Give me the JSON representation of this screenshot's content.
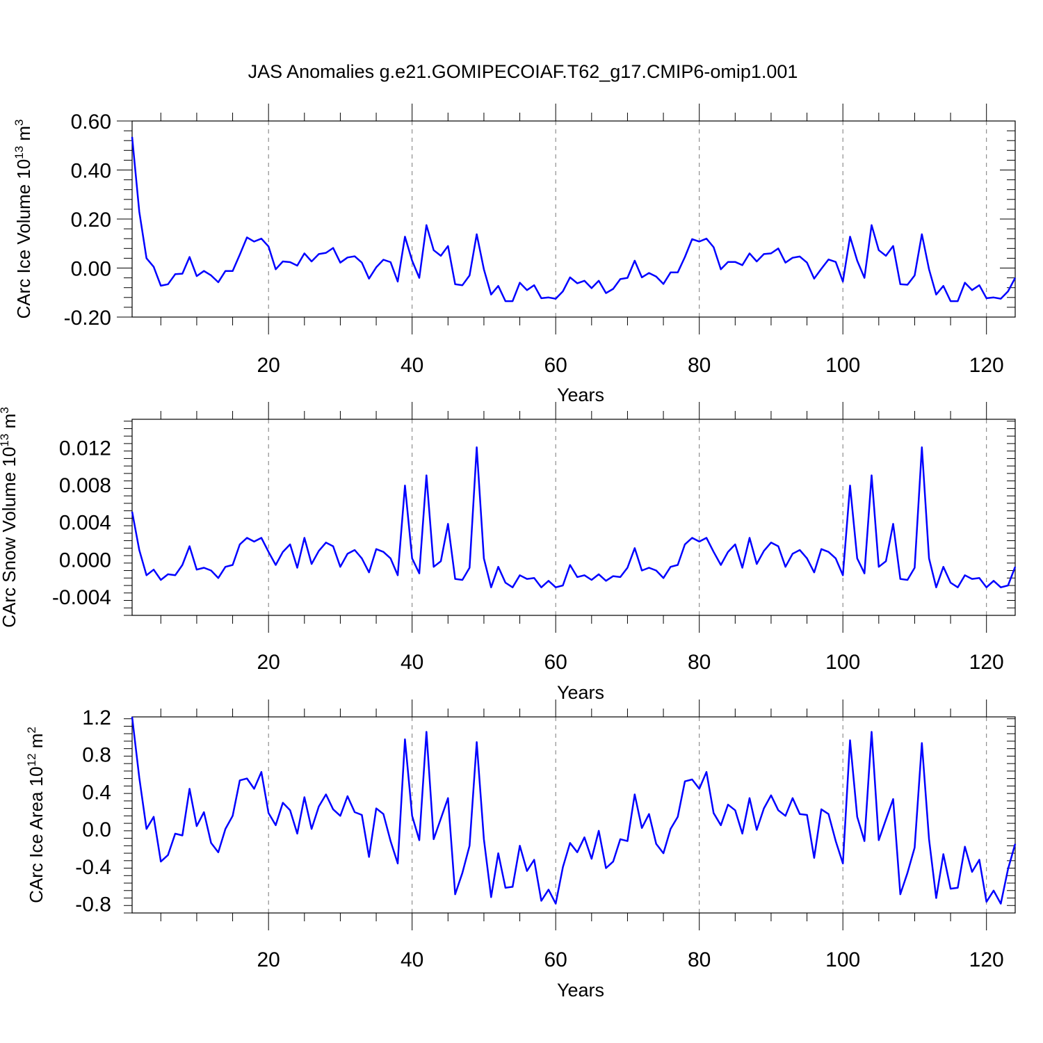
{
  "title": "JAS Anomalies g.e21.GOMIPECOIAF.T62_g17.CMIP6-omip1.001",
  "colors": {
    "series": "#0000ff",
    "grid": "#777777"
  },
  "chart_data": [
    {
      "type": "line",
      "id": "ice-volume",
      "ylabel_main": "CArc Ice Volume 10",
      "ylabel_sup": "13",
      "ylabel_unit": " m",
      "ylabel_unit_sup": "3",
      "xlabel": "Years",
      "xlim": [
        1,
        124
      ],
      "ylim": [
        -0.2,
        0.6
      ],
      "xticks": [
        20,
        40,
        60,
        80,
        100,
        120
      ],
      "xtick_labels": [
        "20",
        "40",
        "60",
        "80",
        "100",
        "120"
      ],
      "yticks": [
        -0.2,
        0.0,
        0.2,
        0.4,
        0.6
      ],
      "ytick_labels": [
        "-0.20",
        "0.00",
        "0.20",
        "0.40",
        "0.60"
      ],
      "grid": "x-dashed",
      "series": [
        {
          "name": "Ice Volume",
          "x_start": 1,
          "values": [
            0.535,
            0.23,
            0.04,
            0.005,
            -0.072,
            -0.066,
            -0.025,
            -0.023,
            0.045,
            -0.033,
            -0.012,
            -0.03,
            -0.058,
            -0.012,
            -0.012,
            0.055,
            0.125,
            0.108,
            0.12,
            0.088,
            -0.005,
            0.027,
            0.024,
            0.01,
            0.06,
            0.027,
            0.057,
            0.062,
            0.082,
            0.022,
            0.043,
            0.048,
            0.022,
            -0.043,
            0.003,
            0.034,
            0.024,
            -0.055,
            0.128,
            0.03,
            -0.04,
            0.175,
            0.073,
            0.05,
            0.09,
            -0.066,
            -0.07,
            -0.03,
            0.138,
            -0.005,
            -0.108,
            -0.073,
            -0.135,
            -0.135,
            -0.06,
            -0.09,
            -0.07,
            -0.123,
            -0.12,
            -0.125,
            -0.095,
            -0.038,
            -0.062,
            -0.052,
            -0.082,
            -0.052,
            -0.102,
            -0.085,
            -0.045,
            -0.04,
            0.03,
            -0.038,
            -0.02,
            -0.035,
            -0.065,
            -0.018,
            -0.018,
            0.045,
            0.118,
            0.108,
            0.12,
            0.085,
            -0.005,
            0.025,
            0.025,
            0.012,
            0.06,
            0.027,
            0.057,
            0.06,
            0.08,
            0.022,
            0.042,
            0.047,
            0.022,
            -0.043,
            -0.003,
            0.035,
            0.025,
            -0.055,
            0.128,
            0.03,
            -0.04,
            0.175,
            0.073,
            0.05,
            0.09,
            -0.066,
            -0.068,
            -0.03,
            0.138,
            -0.005,
            -0.108,
            -0.073,
            -0.135,
            -0.135,
            -0.06,
            -0.09,
            -0.07,
            -0.123,
            -0.12,
            -0.125,
            -0.095,
            -0.04
          ]
        }
      ]
    },
    {
      "type": "line",
      "id": "snow-volume",
      "ylabel_main": "CArc Snow Volume 10",
      "ylabel_sup": "13",
      "ylabel_unit": " m",
      "ylabel_unit_sup": "3",
      "xlabel": "Years",
      "xlim": [
        1,
        124
      ],
      "ylim": [
        -0.006,
        0.015
      ],
      "xticks": [
        20,
        40,
        60,
        80,
        100,
        120
      ],
      "xtick_labels": [
        "20",
        "40",
        "60",
        "80",
        "100",
        "120"
      ],
      "yticks": [
        -0.004,
        0.0,
        0.004,
        0.008,
        0.012
      ],
      "ytick_labels": [
        "-0.004",
        "0.000",
        "0.004",
        "0.008",
        "0.012"
      ],
      "grid": "x-dashed",
      "series": [
        {
          "name": "Snow Volume",
          "x_start": 1,
          "values": [
            0.0051,
            0.001,
            -0.0017,
            -0.0011,
            -0.0022,
            -0.0016,
            -0.0017,
            -0.0006,
            0.0014,
            -0.0011,
            -0.0009,
            -0.0012,
            -0.002,
            -0.0008,
            -0.0006,
            0.0016,
            0.0023,
            0.0019,
            0.0023,
            0.0008,
            -0.0006,
            0.0008,
            0.0016,
            -0.0009,
            0.0023,
            -0.0005,
            0.0009,
            0.0018,
            0.0014,
            -0.0008,
            0.0006,
            0.001,
            0.0001,
            -0.0014,
            0.0011,
            0.0008,
            0.0001,
            -0.0017,
            0.0079,
            0.0001,
            -0.0015,
            0.009,
            -0.0008,
            -0.0002,
            0.0038,
            -0.0021,
            -0.0022,
            -0.0009,
            0.012,
            0.0001,
            -0.003,
            -0.0008,
            -0.0025,
            -0.003,
            -0.0017,
            -0.0021,
            -0.002,
            -0.003,
            -0.0023,
            -0.003,
            -0.0028,
            -0.0006,
            -0.0019,
            -0.0017,
            -0.0022,
            -0.0016,
            -0.0023,
            -0.0018,
            -0.0019,
            -0.0009,
            0.0012,
            -0.0012,
            -0.0009,
            -0.0012,
            -0.002,
            -0.0008,
            -0.0006,
            0.0016,
            0.0023,
            0.0019,
            0.0023,
            0.0008,
            -0.0006,
            0.0008,
            0.0016,
            -0.0009,
            0.0023,
            -0.0005,
            0.0009,
            0.0018,
            0.0014,
            -0.0008,
            0.0006,
            0.001,
            0.0001,
            -0.0014,
            0.0011,
            0.0008,
            0.0001,
            -0.0017,
            0.0079,
            0.0001,
            -0.0015,
            0.009,
            -0.0008,
            -0.0002,
            0.0038,
            -0.0021,
            -0.0022,
            -0.0009,
            0.012,
            0.0001,
            -0.003,
            -0.0008,
            -0.0025,
            -0.003,
            -0.0017,
            -0.0021,
            -0.002,
            -0.003,
            -0.0023,
            -0.003,
            -0.0028,
            -0.0008
          ]
        }
      ]
    },
    {
      "type": "line",
      "id": "ice-area",
      "ylabel_main": "CArc Ice Area 10",
      "ylabel_sup": "12",
      "ylabel_unit": " m",
      "ylabel_unit_sup": "2",
      "xlabel": "Years",
      "xlim": [
        1,
        124
      ],
      "ylim": [
        -0.9,
        1.2
      ],
      "xticks": [
        20,
        40,
        60,
        80,
        100,
        120
      ],
      "xtick_labels": [
        "20",
        "40",
        "60",
        "80",
        "100",
        "120"
      ],
      "yticks": [
        -0.8,
        -0.4,
        0.0,
        0.4,
        0.8,
        1.2
      ],
      "ytick_labels": [
        "-0.8",
        "-0.4",
        "0.0",
        "0.4",
        "0.8",
        "1.2"
      ],
      "grid": "x-dashed",
      "series": [
        {
          "name": "Ice Area",
          "x_start": 1,
          "values": [
            1.2,
            0.55,
            0.0,
            0.13,
            -0.35,
            -0.28,
            -0.05,
            -0.07,
            0.43,
            0.03,
            0.18,
            -0.15,
            -0.25,
            0.0,
            0.14,
            0.52,
            0.54,
            0.43,
            0.61,
            0.17,
            0.04,
            0.28,
            0.2,
            -0.05,
            0.34,
            0.0,
            0.24,
            0.37,
            0.21,
            0.14,
            0.35,
            0.18,
            0.15,
            -0.3,
            0.22,
            0.16,
            -0.13,
            -0.37,
            0.96,
            0.14,
            -0.12,
            1.04,
            -0.11,
            0.11,
            0.33,
            -0.7,
            -0.47,
            -0.18,
            0.93,
            -0.11,
            -0.73,
            -0.26,
            -0.63,
            -0.62,
            -0.18,
            -0.45,
            -0.33,
            -0.77,
            -0.65,
            -0.8,
            -0.41,
            -0.15,
            -0.25,
            -0.09,
            -0.32,
            -0.02,
            -0.42,
            -0.35,
            -0.11,
            -0.13,
            0.37,
            0.01,
            0.16,
            -0.16,
            -0.26,
            0.0,
            0.13,
            0.51,
            0.53,
            0.43,
            0.61,
            0.17,
            0.04,
            0.26,
            0.2,
            -0.05,
            0.33,
            -0.01,
            0.22,
            0.36,
            0.2,
            0.14,
            0.33,
            0.16,
            0.15,
            -0.31,
            0.21,
            0.16,
            -0.13,
            -0.37,
            0.95,
            0.13,
            -0.13,
            1.04,
            -0.12,
            0.1,
            0.32,
            -0.7,
            -0.47,
            -0.2,
            0.92,
            -0.11,
            -0.74,
            -0.27,
            -0.64,
            -0.63,
            -0.19,
            -0.46,
            -0.33,
            -0.78,
            -0.66,
            -0.8,
            -0.43,
            -0.16
          ]
        }
      ]
    }
  ]
}
